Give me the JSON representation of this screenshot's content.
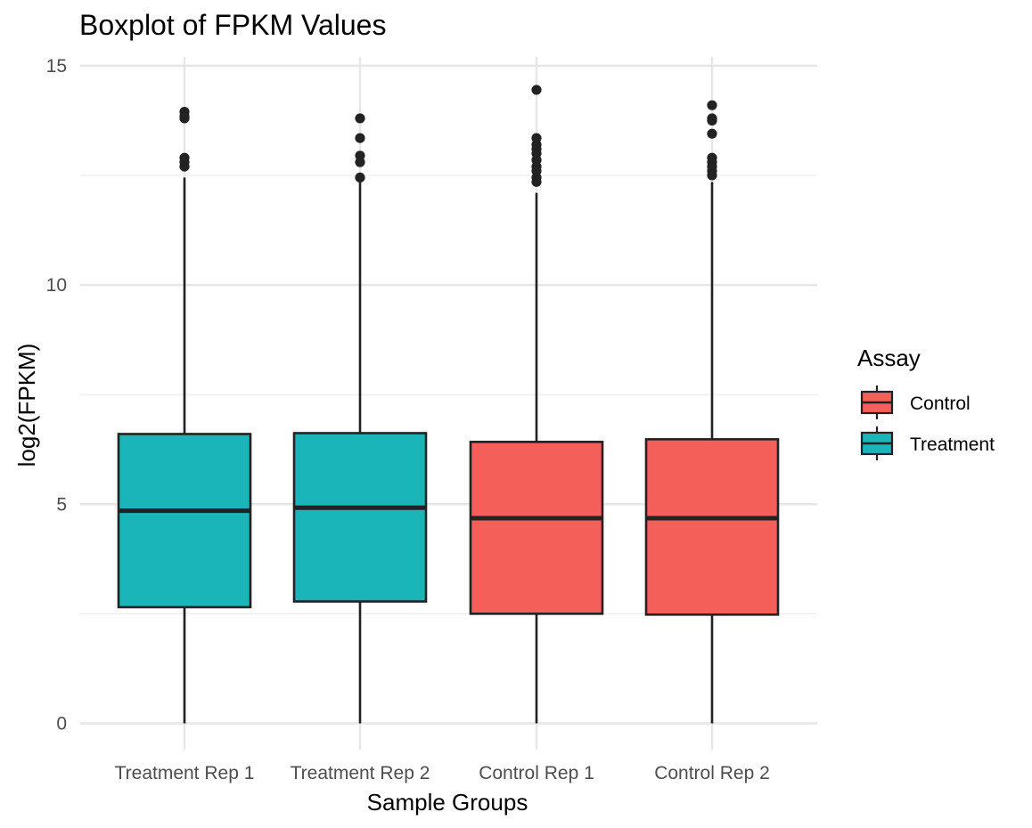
{
  "chart_data": {
    "type": "box",
    "title": "Boxplot of FPKM Values",
    "xlabel": "Sample Groups",
    "ylabel": "log2(FPKM)",
    "ylim": [
      -0.6,
      15.2
    ],
    "yticks": [
      0,
      5,
      10,
      15
    ],
    "yminor": [
      2.5,
      7.5,
      12.5
    ],
    "grid": true,
    "legend": {
      "title": "Assay",
      "placement": "right",
      "entries": [
        {
          "label": "Control",
          "color": "#F45F5A"
        },
        {
          "label": "Treatment",
          "color": "#1AB5B9"
        }
      ]
    },
    "categories": [
      "Treatment Rep 1",
      "Treatment Rep 2",
      "Control Rep 1",
      "Control Rep 2"
    ],
    "boxes": [
      {
        "category": "Treatment Rep 1",
        "assay": "Treatment",
        "min": 0,
        "q1": 2.65,
        "median": 4.85,
        "q3": 6.6,
        "max": 12.45,
        "outliers": [
          12.7,
          12.8,
          12.9,
          13.8,
          13.85,
          13.95
        ]
      },
      {
        "category": "Treatment Rep 2",
        "assay": "Treatment",
        "min": 0,
        "q1": 2.78,
        "median": 4.92,
        "q3": 6.62,
        "max": 12.4,
        "outliers": [
          12.45,
          12.8,
          12.95,
          13.35,
          13.8
        ]
      },
      {
        "category": "Control Rep 1",
        "assay": "Control",
        "min": 0,
        "q1": 2.5,
        "median": 4.68,
        "q3": 6.42,
        "max": 12.1,
        "outliers": [
          12.35,
          12.45,
          12.6,
          12.7,
          12.85,
          13.0,
          13.1,
          13.2,
          13.35,
          14.45
        ]
      },
      {
        "category": "Control Rep 2",
        "assay": "Control",
        "min": 0,
        "q1": 2.48,
        "median": 4.68,
        "q3": 6.48,
        "max": 12.35,
        "outliers": [
          12.5,
          12.6,
          12.7,
          12.8,
          12.9,
          13.45,
          13.75,
          13.8,
          14.1
        ]
      }
    ]
  }
}
